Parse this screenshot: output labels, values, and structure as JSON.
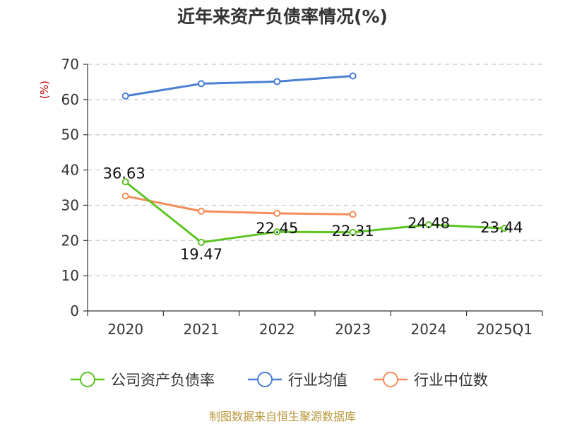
{
  "chart_data": {
    "type": "line",
    "title": "近年来资产负债率情况(%)",
    "ylabel": "(%)",
    "categories": [
      "2020",
      "2021",
      "2022",
      "2023",
      "2024",
      "2025Q1"
    ],
    "ylim": [
      0,
      70
    ],
    "yticks": [
      0,
      10,
      20,
      30,
      40,
      50,
      60,
      70
    ],
    "grid": true,
    "legend_position": "bottom",
    "series": [
      {
        "name": "公司资产负债率",
        "color": "#5cc423",
        "values": [
          36.63,
          19.47,
          22.45,
          22.31,
          24.48,
          23.44
        ],
        "labels": [
          "36.63",
          "19.47",
          "22.45",
          "22.31",
          "24.48",
          "23.44"
        ]
      },
      {
        "name": "行业均值",
        "color": "#4a7fd4",
        "values": [
          61.0,
          64.5,
          65.1,
          66.7,
          null,
          null
        ]
      },
      {
        "name": "行业中位数",
        "color": "#f58c5a",
        "values": [
          32.6,
          28.3,
          27.7,
          27.4,
          null,
          null
        ]
      }
    ]
  },
  "footer": {
    "source": "制图数据来自恒生聚源数据库"
  }
}
